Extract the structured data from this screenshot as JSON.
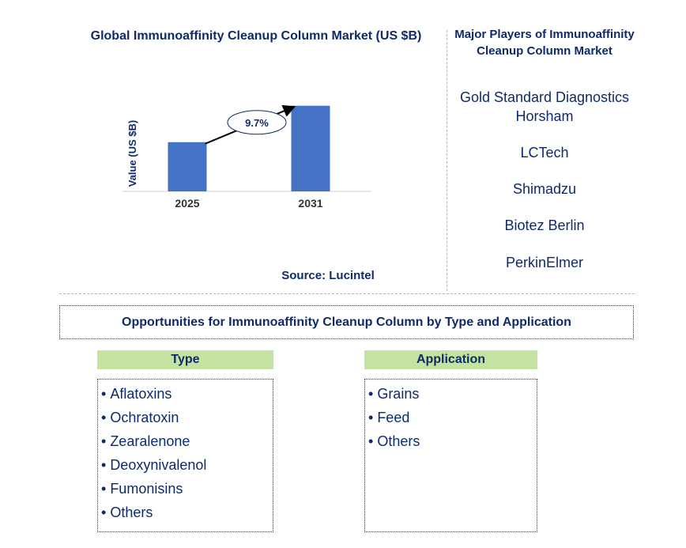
{
  "chart_data": {
    "type": "bar",
    "title": "Global Immunoaffinity Cleanup Column Market (US $B)",
    "ylabel": "Value (US $B)",
    "xlabel": "",
    "categories": [
      "2025",
      "2031"
    ],
    "values": [
      1.0,
      1.74
    ],
    "ylim": [
      0,
      1.8
    ],
    "cagr_label": "9.7%",
    "color": "#4472c4"
  },
  "source": "Source: Lucintel",
  "players": {
    "title": "Major Players of Immunoaffinity Cleanup Column Market",
    "items": [
      "Gold Standard Diagnostics Horsham",
      "LCTech",
      "Shimadzu",
      "Biotez Berlin",
      "PerkinElmer"
    ]
  },
  "opportunities": {
    "title": "Opportunities for Immunoaffinity Cleanup Column by Type and Application",
    "type": {
      "header": "Type",
      "items": [
        "Aflatoxins",
        "Ochratoxin",
        "Zearalenone",
        "Deoxynivalenol",
        "Fumonisins",
        "Others"
      ]
    },
    "application": {
      "header": "Application",
      "items": [
        "Grains",
        "Feed",
        "Others"
      ]
    }
  }
}
